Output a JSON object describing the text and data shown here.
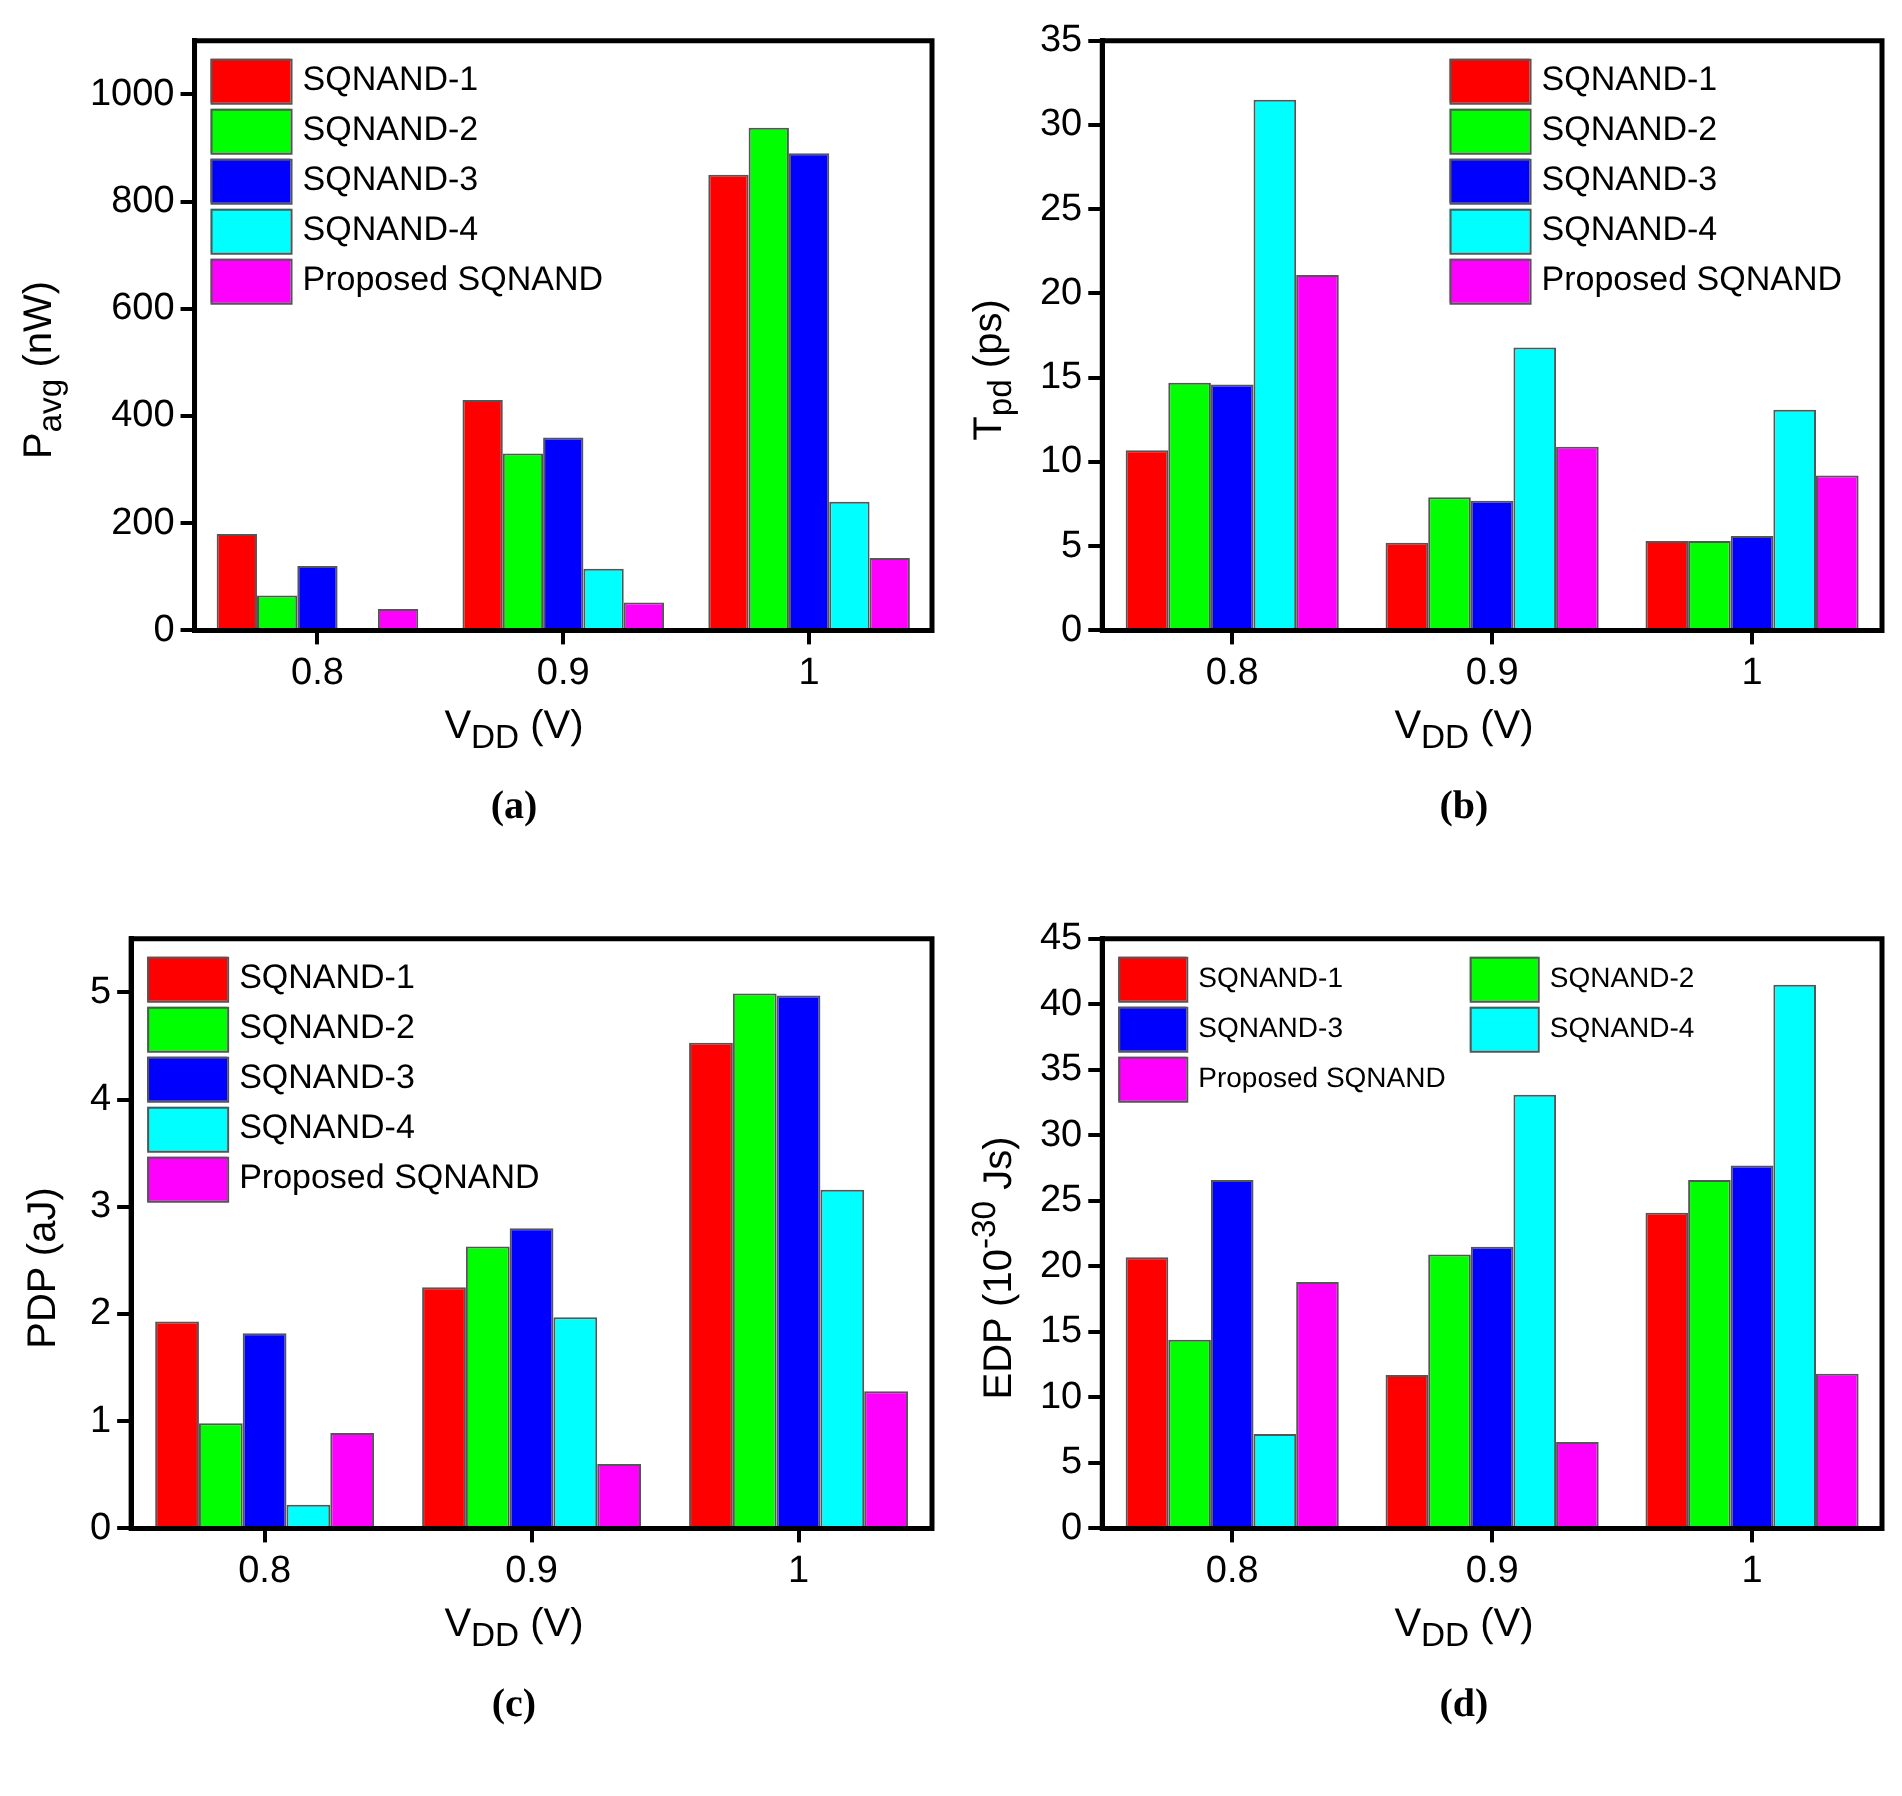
{
  "chart_data": [
    {
      "type": "bar",
      "ylabel": "P$_{avg}$ (nW)",
      "xlabel": "V$_{DD}$ (V)",
      "annotations": [
        "(a)"
      ],
      "categories": [
        "0.8",
        "0.9",
        "1"
      ],
      "ylim": [
        0,
        1100
      ],
      "yticks": [
        0,
        200,
        400,
        600,
        800,
        1000
      ],
      "legend": "top left",
      "series": [
        {
          "name": "SQNAND-1",
          "color": "#ff0000",
          "values": [
            180,
            430,
            850
          ]
        },
        {
          "name": "SQNAND-2",
          "color": "#00ff00",
          "values": [
            65,
            330,
            938
          ]
        },
        {
          "name": "SQNAND-3",
          "color": "#0000ff",
          "values": [
            120,
            360,
            890
          ]
        },
        {
          "name": "SQNAND-4",
          "color": "#00ffff",
          "values": [
            null,
            115,
            240
          ]
        },
        {
          "name": "Proposed SQNAND",
          "color": "#ff00ff",
          "values": [
            40,
            52,
            135
          ]
        }
      ]
    },
    {
      "type": "bar",
      "ylabel": "T$_{pd}$ (ps)",
      "xlabel": "V$_{DD}$ (V)",
      "annotations": [
        "(b)"
      ],
      "categories": [
        "0.8",
        "0.9",
        "1"
      ],
      "ylim": [
        0,
        35
      ],
      "yticks": [
        0,
        5,
        10,
        15,
        20,
        25,
        30,
        35
      ],
      "legend": "top right",
      "series": [
        {
          "name": "SQNAND-1",
          "color": "#ff0000",
          "values": [
            10.7,
            5.2,
            5.3
          ]
        },
        {
          "name": "SQNAND-2",
          "color": "#00ff00",
          "values": [
            14.7,
            7.9,
            5.3
          ]
        },
        {
          "name": "SQNAND-3",
          "color": "#0000ff",
          "values": [
            14.6,
            7.7,
            5.6
          ]
        },
        {
          "name": "SQNAND-4",
          "color": "#00ffff",
          "values": [
            31.5,
            16.8,
            13.1
          ]
        },
        {
          "name": "Proposed SQNAND",
          "color": "#ff00ff",
          "values": [
            21.1,
            10.9,
            9.2
          ]
        }
      ]
    },
    {
      "type": "bar",
      "ylabel": "PDP (aJ)",
      "xlabel": "V$_{DD}$ (V)",
      "annotations": [
        "(c)"
      ],
      "categories": [
        "0.8",
        "0.9",
        "1"
      ],
      "ylim": [
        0,
        5.5
      ],
      "yticks": [
        0,
        1,
        2,
        3,
        4,
        5
      ],
      "legend": "top left",
      "series": [
        {
          "name": "SQNAND-1",
          "color": "#ff0000",
          "values": [
            1.93,
            2.25,
            4.53
          ]
        },
        {
          "name": "SQNAND-2",
          "color": "#00ff00",
          "values": [
            0.98,
            2.63,
            4.99
          ]
        },
        {
          "name": "SQNAND-3",
          "color": "#0000ff",
          "values": [
            1.82,
            2.8,
            4.97
          ]
        },
        {
          "name": "SQNAND-4",
          "color": "#00ffff",
          "values": [
            0.22,
            1.97,
            3.16
          ]
        },
        {
          "name": "Proposed SQNAND",
          "color": "#ff00ff",
          "values": [
            0.89,
            0.6,
            1.28
          ]
        }
      ]
    },
    {
      "type": "bar",
      "ylabel": "EDP (10$^{-30}$ Js)",
      "xlabel": "V$_{DD}$ (V)",
      "annotations": [
        "(d)"
      ],
      "categories": [
        "0.8",
        "0.9",
        "1"
      ],
      "ylim": [
        0,
        45
      ],
      "yticks": [
        0,
        5,
        10,
        15,
        20,
        25,
        30,
        35,
        40,
        45
      ],
      "legend": "top left",
      "series": [
        {
          "name": "SQNAND-1",
          "color": "#ff0000",
          "values": [
            20.7,
            11.7,
            24.1
          ]
        },
        {
          "name": "SQNAND-2",
          "color": "#00ff00",
          "values": [
            14.4,
            20.9,
            26.6
          ]
        },
        {
          "name": "SQNAND-3",
          "color": "#0000ff",
          "values": [
            26.6,
            21.5,
            27.7
          ]
        },
        {
          "name": "SQNAND-4",
          "color": "#00ffff",
          "values": [
            7.2,
            33.1,
            41.5
          ]
        },
        {
          "name": "Proposed SQNAND",
          "color": "#ff00ff",
          "values": [
            18.8,
            6.6,
            11.8
          ]
        }
      ]
    }
  ]
}
